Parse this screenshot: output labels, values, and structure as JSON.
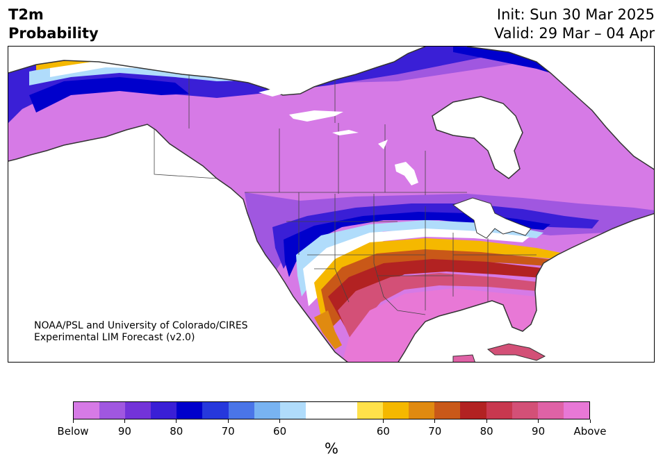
{
  "header": {
    "variable": "T2m",
    "subtitle": "Probability",
    "init": "Init: Sun 30 Mar 2025",
    "valid": "Valid: 29 Mar – 04 Apr"
  },
  "credit": {
    "line1": "NOAA/PSL and University of Colorado/CIRES",
    "line2": "Experimental LIM Forecast (v2.0)"
  },
  "colorbar": {
    "unit": "%",
    "colors": [
      "#d67ae6",
      "#a057e0",
      "#7333d9",
      "#3a1fd6",
      "#0000cc",
      "#2638dc",
      "#4a75e8",
      "#78b3f2",
      "#b0dcfb",
      "#ffffff",
      "#ffffff",
      "#ffe14a",
      "#f5b800",
      "#e08a10",
      "#c95818",
      "#b22222",
      "#c8384f",
      "#d35077",
      "#df62a6",
      "#e878d6"
    ],
    "ticks": [
      {
        "label": "Below",
        "index": 0
      },
      {
        "label": "90",
        "index": 2
      },
      {
        "label": "80",
        "index": 4
      },
      {
        "label": "70",
        "index": 6
      },
      {
        "label": "60",
        "index": 8
      },
      {
        "label": "60",
        "index": 12
      },
      {
        "label": "70",
        "index": 14
      },
      {
        "label": "80",
        "index": 16
      },
      {
        "label": "90",
        "index": 18
      },
      {
        "label": "Above",
        "index": 20
      }
    ]
  },
  "map": {
    "region": "North America",
    "colors": {
      "land_below_strong": "#d67ae6",
      "land_above_strong": "#e878d6",
      "ocean": "#ffffff",
      "coast": "#333333"
    }
  }
}
